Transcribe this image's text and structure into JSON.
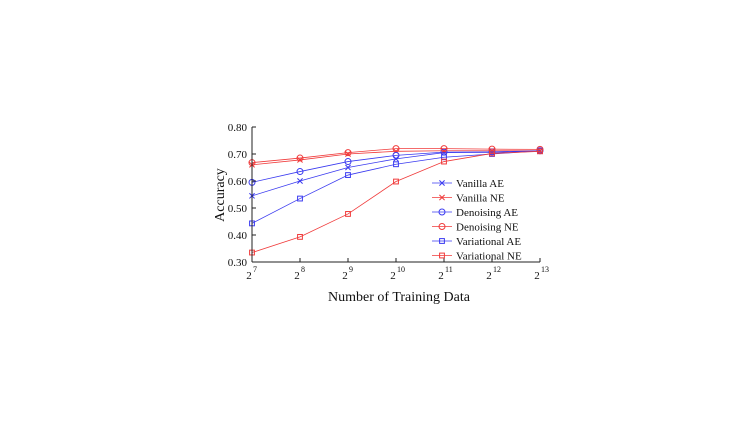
{
  "chart_data": {
    "type": "line",
    "title": "",
    "xlabel": "Number of Training Data",
    "ylabel": "Accuracy",
    "x_scale": "log2",
    "x": [
      128,
      256,
      512,
      1024,
      2048,
      4096,
      8192
    ],
    "x_tick_labels": [
      {
        "base": "2",
        "exp": "7"
      },
      {
        "base": "2",
        "exp": "8"
      },
      {
        "base": "2",
        "exp": "9"
      },
      {
        "base": "2",
        "exp": "10"
      },
      {
        "base": "2",
        "exp": "11"
      },
      {
        "base": "2",
        "exp": "12"
      },
      {
        "base": "2",
        "exp": "13"
      }
    ],
    "ylim": [
      0.3,
      0.8
    ],
    "y_ticks": [
      "0.30",
      "0.40",
      "0.50",
      "0.60",
      "0.70",
      "0.80"
    ],
    "grid": false,
    "legend_position": "right",
    "series": [
      {
        "name": "Vanilla AE",
        "color": "#3a3af0",
        "marker": "x",
        "values": [
          0.545,
          0.6,
          0.65,
          0.682,
          0.705,
          0.706,
          0.71
        ]
      },
      {
        "name": "Vanilla NE",
        "color": "#f03a3a",
        "marker": "x",
        "values": [
          0.66,
          0.678,
          0.7,
          0.71,
          0.712,
          0.712,
          0.712
        ]
      },
      {
        "name": "Denoising AE",
        "color": "#3a3af0",
        "marker": "circle",
        "values": [
          0.595,
          0.635,
          0.672,
          0.695,
          0.707,
          0.708,
          0.712
        ]
      },
      {
        "name": "Denoising NE",
        "color": "#f03a3a",
        "marker": "circle",
        "values": [
          0.668,
          0.685,
          0.705,
          0.72,
          0.72,
          0.718,
          0.717
        ]
      },
      {
        "name": "Variational AE",
        "color": "#3a3af0",
        "marker": "square",
        "values": [
          0.443,
          0.535,
          0.622,
          0.662,
          0.688,
          0.7,
          0.712
        ]
      },
      {
        "name": "Variational NE",
        "color": "#f03a3a",
        "marker": "square",
        "values": [
          0.335,
          0.393,
          0.478,
          0.598,
          0.672,
          0.702,
          0.71
        ]
      }
    ]
  }
}
